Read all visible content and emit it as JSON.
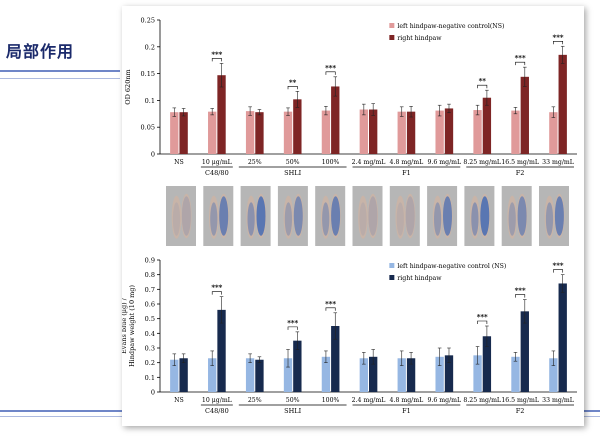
{
  "slide": {
    "title": "局部作用"
  },
  "chart_data": [
    {
      "type": "bar",
      "ylabel": "OD 620nm",
      "ylim": [
        0,
        0.25
      ],
      "yticks": [
        0,
        0.05,
        0.1,
        0.15,
        0.2,
        0.25
      ],
      "categories": [
        "NS",
        "10 μg/mL",
        "25%",
        "50%",
        "100%",
        "2.4 mg/mL",
        "4.8 mg/mL",
        "9.6 mg/mL",
        "8.25 mg/mL",
        "16.5 mg/mL",
        "33 mg/mL"
      ],
      "groups": [
        {
          "label": "C48/80",
          "start": 1,
          "end": 1
        },
        {
          "label": "SHLI",
          "start": 2,
          "end": 4
        },
        {
          "label": "F1",
          "start": 5,
          "end": 7
        },
        {
          "label": "F2",
          "start": 8,
          "end": 10
        }
      ],
      "series": [
        {
          "name": "left hindpaw-negative control(NS)",
          "color": "#e09a9a",
          "values": [
            0.078,
            0.079,
            0.08,
            0.079,
            0.081,
            0.083,
            0.079,
            0.081,
            0.082,
            0.081,
            0.078
          ],
          "errors": [
            0.008,
            0.006,
            0.008,
            0.007,
            0.008,
            0.01,
            0.009,
            0.01,
            0.009,
            0.006,
            0.01
          ]
        },
        {
          "name": "right hindpaw",
          "color": "#7e2525",
          "values": [
            0.078,
            0.147,
            0.078,
            0.102,
            0.126,
            0.083,
            0.079,
            0.085,
            0.105,
            0.144,
            0.185
          ],
          "errors": [
            0.007,
            0.022,
            0.005,
            0.015,
            0.018,
            0.011,
            0.01,
            0.008,
            0.014,
            0.018,
            0.016
          ]
        }
      ],
      "significance": [
        {
          "index": 1,
          "label": "***"
        },
        {
          "index": 3,
          "label": "**"
        },
        {
          "index": 4,
          "label": "***"
        },
        {
          "index": 8,
          "label": "**"
        },
        {
          "index": 9,
          "label": "***"
        },
        {
          "index": 10,
          "label": "***"
        }
      ],
      "legend_position": "top-right"
    },
    {
      "type": "bar",
      "ylabel": "Evans blue (μg) / Hindpaw weight (10 mg)",
      "ylabel_lines": [
        "Evans blue (μg) /",
        "Hindpaw weight (10 mg)"
      ],
      "ylim": [
        0,
        0.9
      ],
      "yticks": [
        0,
        0.1,
        0.2,
        0.3,
        0.4,
        0.5,
        0.6,
        0.7,
        0.8,
        0.9
      ],
      "categories": [
        "NS",
        "10 μg/mL",
        "25%",
        "50%",
        "100%",
        "2.4 mg/mL",
        "4.8 mg/mL",
        "9.6 mg/mL",
        "8.25 mg/mL",
        "16.5 mg/mL",
        "33 mg/mL"
      ],
      "groups": [
        {
          "label": "C48/80",
          "start": 1,
          "end": 1
        },
        {
          "label": "SHLI",
          "start": 2,
          "end": 4
        },
        {
          "label": "F1",
          "start": 5,
          "end": 7
        },
        {
          "label": "F2",
          "start": 8,
          "end": 10
        }
      ],
      "series": [
        {
          "name": "left hindpaw-negative control (NS)",
          "color": "#96b7e3",
          "values": [
            0.22,
            0.23,
            0.23,
            0.23,
            0.24,
            0.23,
            0.23,
            0.24,
            0.25,
            0.24,
            0.23
          ],
          "errors": [
            0.04,
            0.05,
            0.03,
            0.06,
            0.04,
            0.04,
            0.05,
            0.06,
            0.06,
            0.03,
            0.05
          ]
        },
        {
          "name": "right hindpaw",
          "color": "#172a4e",
          "values": [
            0.23,
            0.56,
            0.22,
            0.35,
            0.45,
            0.24,
            0.23,
            0.25,
            0.38,
            0.55,
            0.74
          ],
          "errors": [
            0.03,
            0.09,
            0.02,
            0.06,
            0.09,
            0.05,
            0.04,
            0.05,
            0.07,
            0.08,
            0.06
          ]
        }
      ],
      "significance": [
        {
          "index": 1,
          "label": "***"
        },
        {
          "index": 3,
          "label": "***"
        },
        {
          "index": 4,
          "label": "***"
        },
        {
          "index": 8,
          "label": "***"
        },
        {
          "index": 9,
          "label": "***"
        },
        {
          "index": 10,
          "label": "***"
        }
      ],
      "legend_position": "top-right"
    }
  ],
  "photos": {
    "count": 11,
    "colors": {
      "paw": "#c8b4a8",
      "dye": "#3c66b4",
      "bg": "#b6b6b6"
    }
  }
}
